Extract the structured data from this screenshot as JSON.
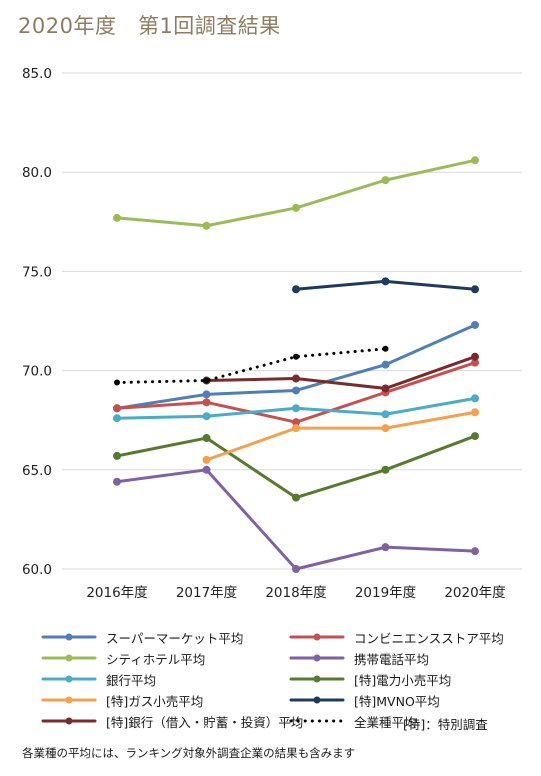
{
  "title": "2020年度　第1回調査結果",
  "special_note": "[特]：特別調査",
  "footnote": "各業種の平均には、ランキング対象外調査企業の結果も含みます",
  "chart_data": {
    "type": "line",
    "title": "2020年度　第1回調査結果",
    "xlabel": "",
    "ylabel": "",
    "categories": [
      "2016年度",
      "2017年度",
      "2018年度",
      "2019年度",
      "2020年度"
    ],
    "y_ticks": [
      "60.0",
      "65.0",
      "70.0",
      "75.0",
      "80.0",
      "85.0"
    ],
    "ylim": [
      60,
      85
    ],
    "grid": true,
    "legend_position": "bottom",
    "series": [
      {
        "name": "スーパーマーケット平均",
        "color": "#4f7fb5",
        "style": "solid",
        "values": [
          68.1,
          68.8,
          69.0,
          70.3,
          72.3
        ]
      },
      {
        "name": "コンビニエンスストア平均",
        "color": "#c4504f",
        "style": "solid",
        "values": [
          68.1,
          68.4,
          67.4,
          68.9,
          70.4
        ]
      },
      {
        "name": "シティホテル平均",
        "color": "#9bbb59",
        "style": "solid",
        "values": [
          77.7,
          77.3,
          78.2,
          79.6,
          80.6
        ]
      },
      {
        "name": "携帯電話平均",
        "color": "#7e62a2",
        "style": "solid",
        "values": [
          64.4,
          65.0,
          60.0,
          61.1,
          60.9
        ]
      },
      {
        "name": "銀行平均",
        "color": "#4aacc5",
        "style": "solid",
        "values": [
          67.6,
          67.7,
          68.1,
          67.8,
          68.6
        ]
      },
      {
        "name": "[特]電力小売平均",
        "color": "#577a2f",
        "style": "solid",
        "values": [
          65.7,
          66.6,
          63.6,
          65.0,
          66.7
        ]
      },
      {
        "name": "[特]ガス小売平均",
        "color": "#f4a04c",
        "style": "solid",
        "values": [
          null,
          65.5,
          67.1,
          67.1,
          67.9
        ]
      },
      {
        "name": "[特]MVNO平均",
        "color": "#1f3b5c",
        "style": "solid",
        "values": [
          null,
          null,
          74.1,
          74.5,
          74.1
        ]
      },
      {
        "name": "[特]銀行（借入・貯蓄・投資）平均",
        "color": "#7a2a2a",
        "style": "solid",
        "values": [
          null,
          69.5,
          69.6,
          69.1,
          70.7
        ]
      },
      {
        "name": "全業種平均",
        "color": "#000000",
        "style": "dotted",
        "values": [
          69.4,
          69.5,
          70.7,
          71.1,
          null
        ]
      }
    ]
  }
}
